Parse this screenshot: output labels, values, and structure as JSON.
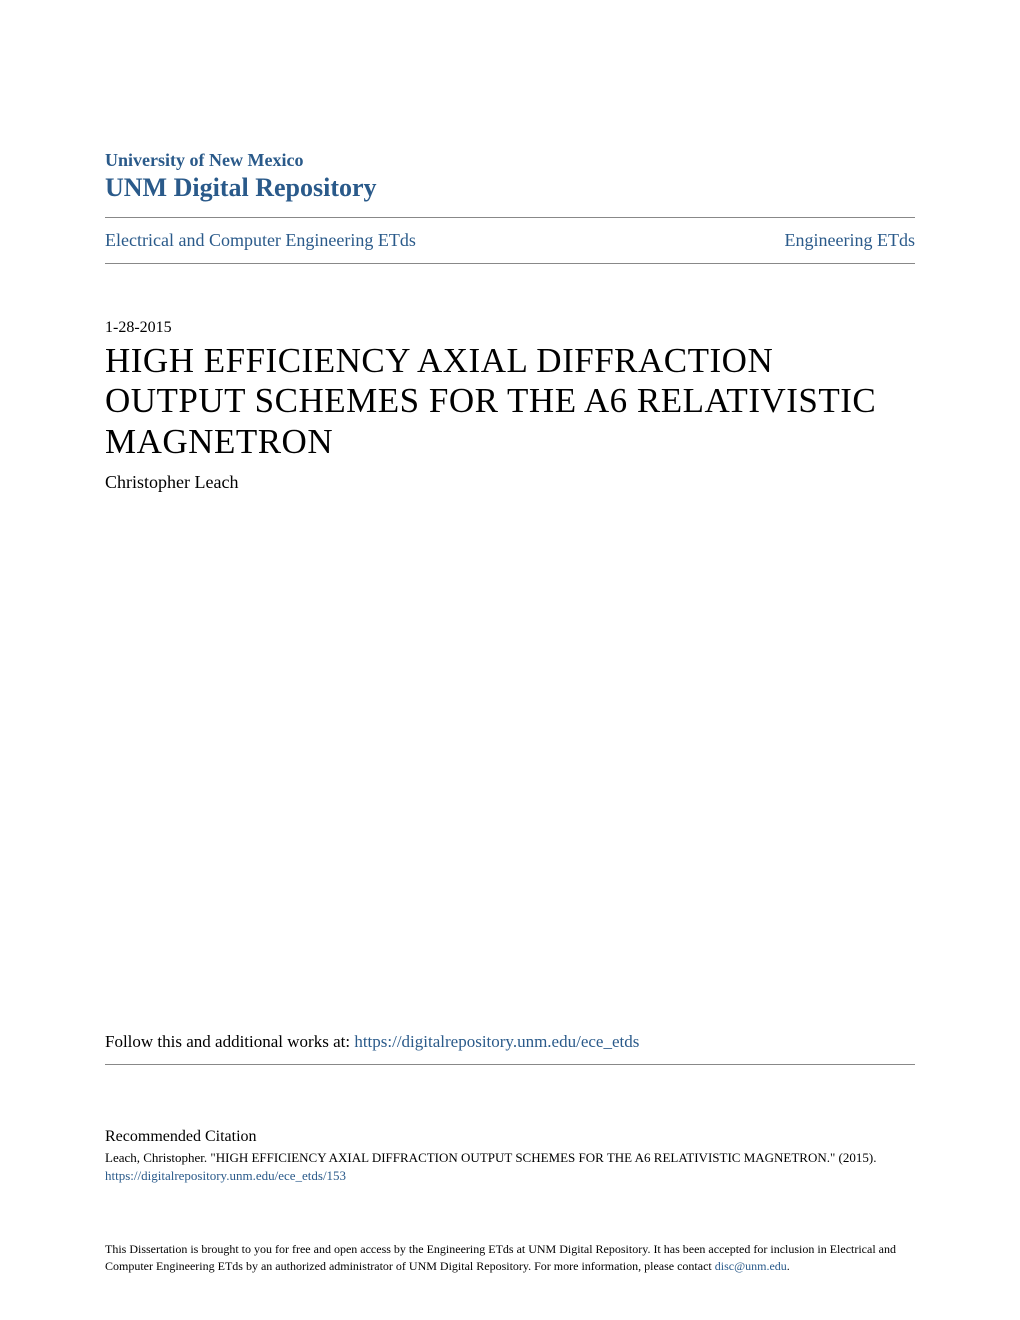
{
  "header": {
    "university": "University of New Mexico",
    "repository": "UNM Digital Repository"
  },
  "breadcrumb": {
    "left": "Electrical and Computer Engineering ETds",
    "right": "Engineering ETds"
  },
  "document": {
    "date": "1-28-2015",
    "title": "HIGH EFFICIENCY AXIAL DIFFRACTION OUTPUT SCHEMES FOR THE A6 RELATIVISTIC MAGNETRON",
    "author": "Christopher Leach"
  },
  "follow": {
    "prefix": "Follow this and additional works at: ",
    "url": "https://digitalrepository.unm.edu/ece_etds"
  },
  "citation": {
    "heading": "Recommended Citation",
    "text": "Leach, Christopher. \"HIGH EFFICIENCY AXIAL DIFFRACTION OUTPUT SCHEMES FOR THE A6 RELATIVISTIC MAGNETRON.\" (2015). ",
    "url": "https://digitalrepository.unm.edu/ece_etds/153"
  },
  "disclaimer": {
    "text1": "This Dissertation is brought to you for free and open access by the Engineering ETds at UNM Digital Repository. It has been accepted for inclusion in Electrical and Computer Engineering ETds by an authorized administrator of UNM Digital Repository. For more information, please contact ",
    "email": "disc@unm.edu",
    "text2": "."
  },
  "colors": {
    "link": "#2a5a8a",
    "text": "#000000",
    "divider": "#888888",
    "background": "#ffffff"
  }
}
